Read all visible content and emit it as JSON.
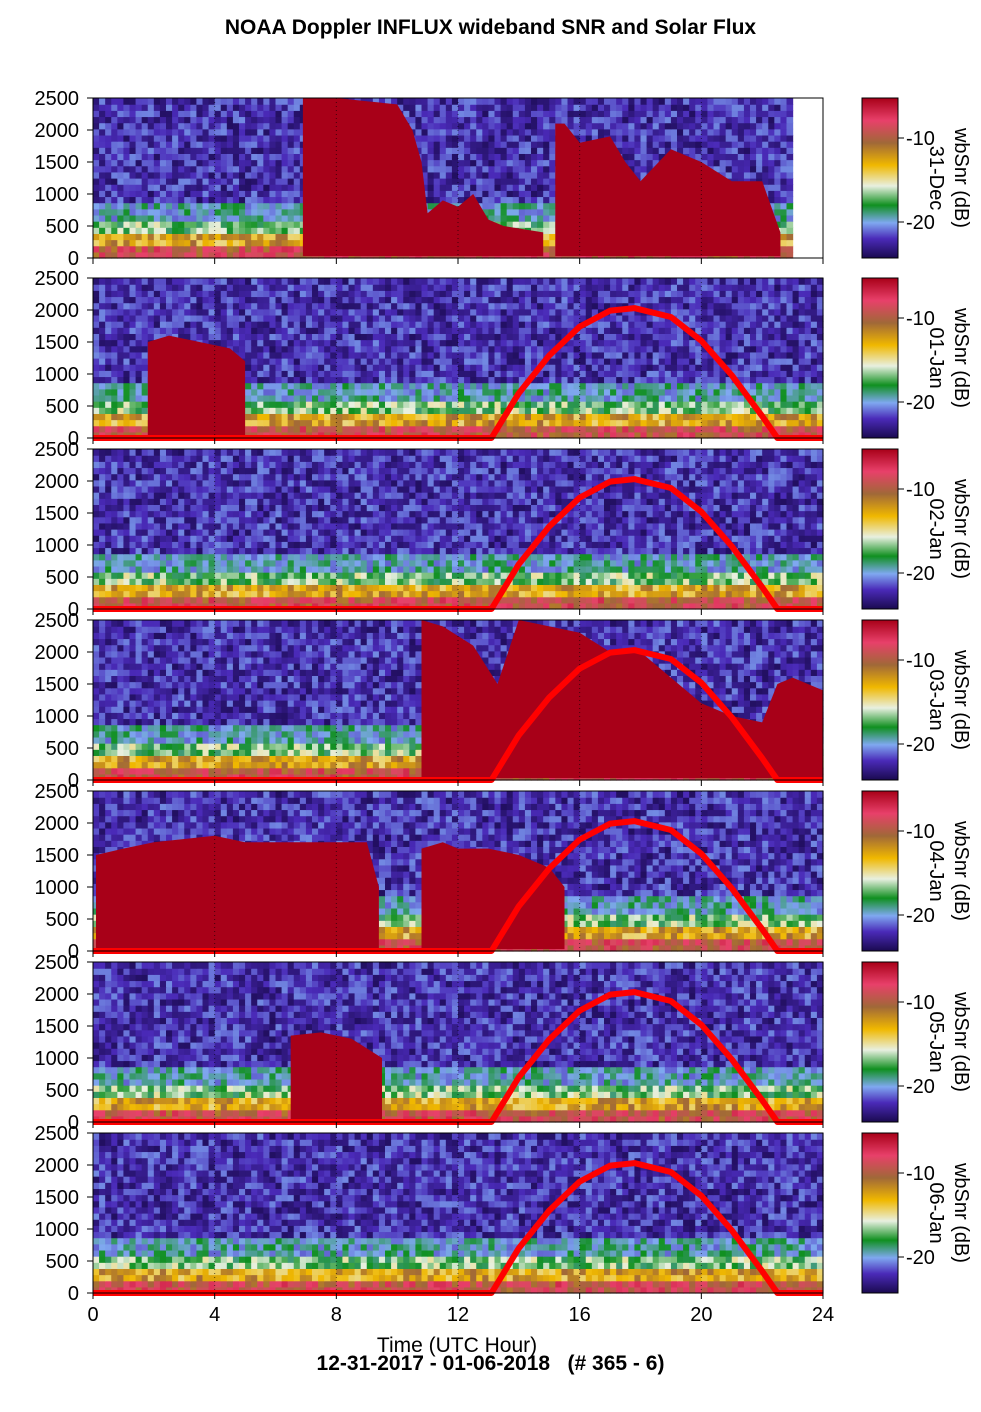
{
  "title": "NOAA Doppler INFLUX wideband SNR and Solar Flux",
  "footer": "12-31-2017 - 01-06-2018   (# 365 - 6)",
  "chart_data": {
    "type": "heatmap",
    "xlabel": "Time (UTC Hour)",
    "xlim": [
      0,
      24
    ],
    "xticks": [
      0,
      4,
      8,
      12,
      16,
      20,
      24
    ],
    "ylim": [
      0,
      2500
    ],
    "yticks": [
      0,
      500,
      1000,
      1500,
      2000,
      2500
    ],
    "colorbar": {
      "label": "wbSnr (dB)",
      "ticks": [
        -10,
        -20
      ]
    },
    "colors": {
      "solar_flux_curve": "#ff0000",
      "saturated": "#a80018",
      "scale": [
        "#1a0a50",
        "#4a2ab8",
        "#7fa8f0",
        "#109020",
        "#e8f0e0",
        "#f0b800",
        "#a06838",
        "#e8406a",
        "#a80018"
      ]
    },
    "panels": [
      {
        "date": "31-Dec",
        "solar_curve": [],
        "saturated_regions": [
          {
            "x": [
              6.9,
              10.8
            ],
            "y_top": [
              2500,
              2500,
              2450,
              2400,
              2000,
              1500
            ],
            "x_pts": [
              6.9,
              8,
              9,
              10,
              10.5,
              10.8
            ]
          },
          {
            "x_pts": [
              10.8,
              11,
              11.5,
              12,
              12.5,
              13,
              13.5,
              14.8
            ],
            "y_top": [
              1500,
              700,
              900,
              800,
              1000,
              600,
              500,
              400
            ]
          },
          {
            "x_pts": [
              15.2,
              15.5,
              16,
              17,
              17.5,
              18,
              19,
              20,
              21,
              22,
              22.6
            ],
            "y_top": [
              2100,
              2100,
              1800,
              1900,
              1500,
              1200,
              1700,
              1500,
              1200,
              1200,
              400
            ]
          }
        ],
        "data_end_hour": 23
      },
      {
        "date": "01-Jan",
        "solar_curve": [
          [
            13.1,
            0
          ],
          [
            14,
            700
          ],
          [
            15,
            1290
          ],
          [
            16,
            1740
          ],
          [
            17,
            1990
          ],
          [
            17.8,
            2030
          ],
          [
            19,
            1890
          ],
          [
            20,
            1520
          ],
          [
            21,
            980
          ],
          [
            22,
            340
          ],
          [
            22.5,
            0
          ]
        ],
        "saturated_regions": [
          {
            "x_pts": [
              1.8,
              2.5,
              3.5,
              4.5,
              5.0
            ],
            "y_top": [
              1500,
              1600,
              1500,
              1400,
              1200
            ]
          }
        ]
      },
      {
        "date": "02-Jan",
        "solar_curve": [
          [
            13.1,
            0
          ],
          [
            14,
            700
          ],
          [
            15,
            1290
          ],
          [
            16,
            1740
          ],
          [
            17,
            1990
          ],
          [
            17.8,
            2030
          ],
          [
            19,
            1890
          ],
          [
            20,
            1520
          ],
          [
            21,
            980
          ],
          [
            22,
            340
          ],
          [
            22.5,
            0
          ]
        ],
        "saturated_regions": []
      },
      {
        "date": "03-Jan",
        "solar_curve": [
          [
            13.1,
            0
          ],
          [
            14,
            700
          ],
          [
            15,
            1290
          ],
          [
            16,
            1740
          ],
          [
            17,
            1990
          ],
          [
            17.8,
            2030
          ],
          [
            19,
            1890
          ],
          [
            20,
            1520
          ],
          [
            21,
            980
          ],
          [
            22,
            340
          ],
          [
            22.5,
            0
          ]
        ],
        "saturated_regions": [
          {
            "x_pts": [
              10.8,
              11.5,
              12.5,
              13.3,
              14,
              15,
              16,
              17,
              18,
              19,
              20,
              21,
              22,
              22.5,
              23,
              24
            ],
            "y_top": [
              2500,
              2400,
              2100,
              1500,
              2500,
              2400,
              2300,
              2000,
              2000,
              1600,
              1200,
              1000,
              900,
              1500,
              1600,
              1400
            ]
          }
        ]
      },
      {
        "date": "04-Jan",
        "solar_curve": [
          [
            13.1,
            0
          ],
          [
            14,
            700
          ],
          [
            15,
            1290
          ],
          [
            16,
            1740
          ],
          [
            17,
            1990
          ],
          [
            17.8,
            2030
          ],
          [
            19,
            1890
          ],
          [
            20,
            1520
          ],
          [
            21,
            980
          ],
          [
            22,
            340
          ],
          [
            22.5,
            0
          ]
        ],
        "saturated_regions": [
          {
            "x_pts": [
              0.1,
              1,
              2,
              3,
              4,
              5,
              6,
              7,
              8,
              9,
              9.4
            ],
            "y_top": [
              1500,
              1600,
              1700,
              1750,
              1800,
              1700,
              1700,
              1700,
              1700,
              1700,
              1000
            ]
          },
          {
            "x_pts": [
              10.8,
              11.5,
              12,
              13,
              14,
              15,
              15.5
            ],
            "y_top": [
              1600,
              1700,
              1600,
              1600,
              1500,
              1300,
              1000
            ]
          }
        ]
      },
      {
        "date": "05-Jan",
        "solar_curve": [
          [
            13.1,
            0
          ],
          [
            14,
            700
          ],
          [
            15,
            1290
          ],
          [
            16,
            1740
          ],
          [
            17,
            1990
          ],
          [
            17.8,
            2030
          ],
          [
            19,
            1890
          ],
          [
            20,
            1520
          ],
          [
            21,
            980
          ],
          [
            22,
            340
          ],
          [
            22.5,
            0
          ]
        ],
        "saturated_regions": [
          {
            "x_pts": [
              6.5,
              7.5,
              8.5,
              9.5
            ],
            "y_top": [
              1350,
              1400,
              1300,
              1000
            ]
          }
        ]
      },
      {
        "date": "06-Jan",
        "solar_curve": [
          [
            13.1,
            0
          ],
          [
            14,
            700
          ],
          [
            15,
            1290
          ],
          [
            16,
            1740
          ],
          [
            17,
            1990
          ],
          [
            17.8,
            2030
          ],
          [
            19,
            1890
          ],
          [
            20,
            1520
          ],
          [
            21,
            980
          ],
          [
            22,
            340
          ],
          [
            22.5,
            0
          ]
        ],
        "saturated_regions": []
      }
    ]
  }
}
